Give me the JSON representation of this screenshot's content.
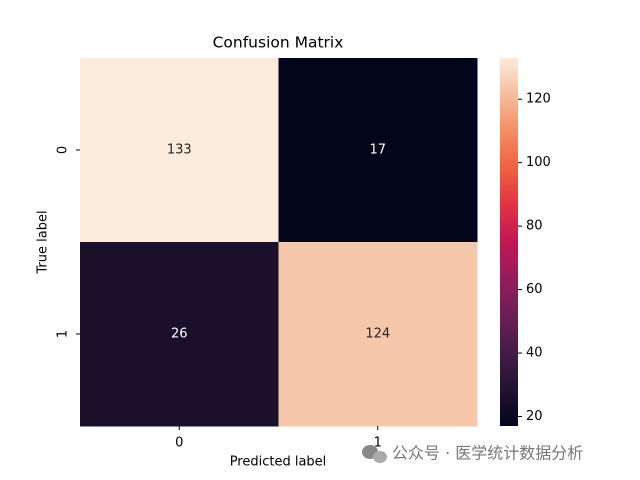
{
  "chart_data": {
    "type": "heatmap",
    "title": "Confusion Matrix",
    "x_label": "Predicted label",
    "y_label": "True label",
    "x_categories": [
      "0",
      "1"
    ],
    "y_categories": [
      "0",
      "1"
    ],
    "z": [
      [
        133,
        17
      ],
      [
        26,
        124
      ]
    ],
    "zlim": [
      17,
      133
    ],
    "zticks": [
      20,
      40,
      60,
      80,
      100,
      120
    ],
    "colormap": [
      "#03051a",
      "#221331",
      "#451c47",
      "#6c1f56",
      "#951c5b",
      "#c11754",
      "#e13342",
      "#f06043",
      "#f58c63",
      "#f6bd9c",
      "#faebdd"
    ],
    "watermark": "公众号 · 医学统计数据分析"
  }
}
